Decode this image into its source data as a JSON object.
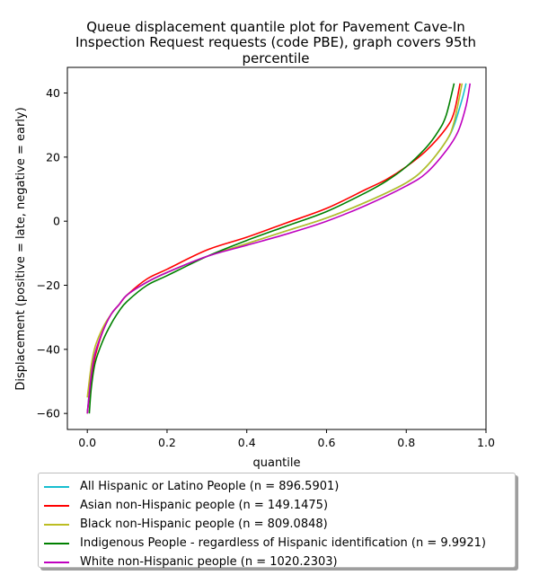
{
  "chart_data": {
    "type": "line",
    "title": [
      "Queue displacement quantile plot for Pavement Cave-In",
      "Inspection Request  requests (code PBE), graph covers 95th",
      "percentile"
    ],
    "xlabel": "quantile",
    "ylabel": "Displacement (positive = late, negative = early)",
    "xlim": [
      -0.05,
      1.0
    ],
    "ylim": [
      -65,
      48
    ],
    "xticks": [
      0.0,
      0.2,
      0.4,
      0.6,
      0.8,
      1.0
    ],
    "xtick_labels": [
      "0.0",
      "0.2",
      "0.4",
      "0.6",
      "0.8",
      "1.0"
    ],
    "yticks": [
      -60,
      -40,
      -20,
      0,
      20,
      40
    ],
    "ytick_labels": [
      "−60",
      "−40",
      "−20",
      "0",
      "20",
      "40"
    ],
    "legend_placement": "below",
    "series": [
      {
        "name": "All Hispanic or Latino People (n = 896.5901)",
        "color": "#17becf",
        "x": [
          0.0,
          0.01,
          0.02,
          0.04,
          0.06,
          0.08,
          0.1,
          0.15,
          0.2,
          0.3,
          0.4,
          0.5,
          0.6,
          0.7,
          0.8,
          0.85,
          0.9,
          0.92,
          0.94,
          0.95
        ],
        "y": [
          -60,
          -47,
          -41,
          -34,
          -29,
          -26,
          -23,
          -19,
          -16,
          -11,
          -7,
          -3,
          1,
          6,
          12,
          17,
          25,
          30,
          38,
          43
        ]
      },
      {
        "name": "Asian non-Hispanic people (n = 149.1475)",
        "color": "#ff0000",
        "x": [
          0.0,
          0.01,
          0.02,
          0.04,
          0.06,
          0.08,
          0.1,
          0.15,
          0.2,
          0.3,
          0.4,
          0.5,
          0.6,
          0.7,
          0.75,
          0.8,
          0.85,
          0.9,
          0.92,
          0.935
        ],
        "y": [
          -60,
          -49,
          -42,
          -34,
          -29,
          -26,
          -23,
          -18,
          -15,
          -9,
          -5,
          -0.5,
          4,
          10,
          13,
          17,
          22,
          29,
          34,
          43
        ]
      },
      {
        "name": "Black non-Hispanic people (n = 809.0848)",
        "color": "#bcbd22",
        "x": [
          0.0,
          0.01,
          0.02,
          0.04,
          0.06,
          0.08,
          0.1,
          0.15,
          0.2,
          0.3,
          0.4,
          0.5,
          0.6,
          0.7,
          0.8,
          0.85,
          0.9,
          0.92,
          0.94
        ],
        "y": [
          -55,
          -45,
          -39,
          -33,
          -29,
          -26,
          -23,
          -19,
          -16,
          -11,
          -7,
          -3,
          1,
          6,
          12,
          17,
          25,
          31,
          43
        ]
      },
      {
        "name": "Indigenous People - regardless of Hispanic identification (n = 9.9921)",
        "color": "#008000",
        "x": [
          0.005,
          0.01,
          0.02,
          0.04,
          0.06,
          0.08,
          0.1,
          0.15,
          0.2,
          0.3,
          0.4,
          0.5,
          0.6,
          0.7,
          0.75,
          0.8,
          0.85,
          0.88,
          0.9,
          0.92
        ],
        "y": [
          -60,
          -52,
          -44,
          -37,
          -32,
          -28,
          -25,
          -20,
          -17,
          -11,
          -6,
          -1.5,
          3,
          9,
          12.5,
          17,
          23,
          28,
          33,
          43
        ]
      },
      {
        "name": "White non-Hispanic people (n = 1020.2303)",
        "color": "#bf00bf",
        "x": [
          0.0,
          0.01,
          0.02,
          0.04,
          0.06,
          0.08,
          0.1,
          0.15,
          0.2,
          0.3,
          0.4,
          0.5,
          0.6,
          0.7,
          0.8,
          0.85,
          0.9,
          0.93,
          0.95,
          0.96
        ],
        "y": [
          -60,
          -48,
          -41,
          -34,
          -29,
          -26,
          -23,
          -19,
          -16,
          -11,
          -7.5,
          -4,
          0,
          5,
          11,
          15,
          22,
          28,
          36,
          43
        ]
      }
    ]
  }
}
